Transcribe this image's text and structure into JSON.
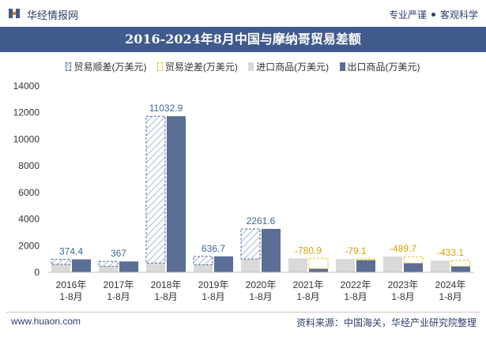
{
  "header": {
    "brand": "华经情报网",
    "slogan_left": "专业严谨",
    "slogan_right": "客观科学"
  },
  "footer": {
    "website": "www.huaon.com",
    "source": "资料来源：中国海关，华经产业研究院整理"
  },
  "colors": {
    "title_bar": "#3f5a8c",
    "export": "#5b6f96",
    "import": "#d9d9d9",
    "surplus_label": "#3d6694",
    "deficit_label": "#f2c012"
  },
  "chart_data": {
    "type": "bar",
    "title": "2016-2024年8月中国与摩纳哥贸易差额",
    "categories": [
      "2016年\n1-8月",
      "2017年\n1-8月",
      "2018年\n1-8月",
      "2019年\n1-8月",
      "2020年\n1-8月",
      "2021年\n1-8月",
      "2022年\n1-8月",
      "2023年\n1-8月",
      "2024年\n1-8月"
    ],
    "ylim": [
      0,
      14000
    ],
    "yticks": [
      0,
      2000,
      4000,
      6000,
      8000,
      10000,
      12000,
      14000
    ],
    "grid": false,
    "legend_position": "top",
    "series": [
      {
        "name": "贸易顺差(万美元)",
        "values": [
          374.4,
          367,
          11032.9,
          636.7,
          2261.6,
          null,
          null,
          null,
          null
        ]
      },
      {
        "name": "贸易逆差(万美元)",
        "values": [
          null,
          null,
          null,
          null,
          null,
          -780.9,
          -79.1,
          -489.7,
          -433.1
        ]
      },
      {
        "name": "进口商品(万美元)",
        "values": [
          600,
          450,
          700,
          560,
          1000,
          1050,
          1000,
          1180,
          880
        ]
      },
      {
        "name": "出口商品(万美元)",
        "values": [
          974.4,
          817,
          11732.9,
          1196.7,
          3261.6,
          269.1,
          920.9,
          690.3,
          446.9
        ]
      }
    ],
    "balance_labels": [
      "374.4",
      "367",
      "11032.9",
      "636.7",
      "2261.6",
      "-780.9",
      "-79.1",
      "-489.7",
      "-433.1"
    ]
  }
}
